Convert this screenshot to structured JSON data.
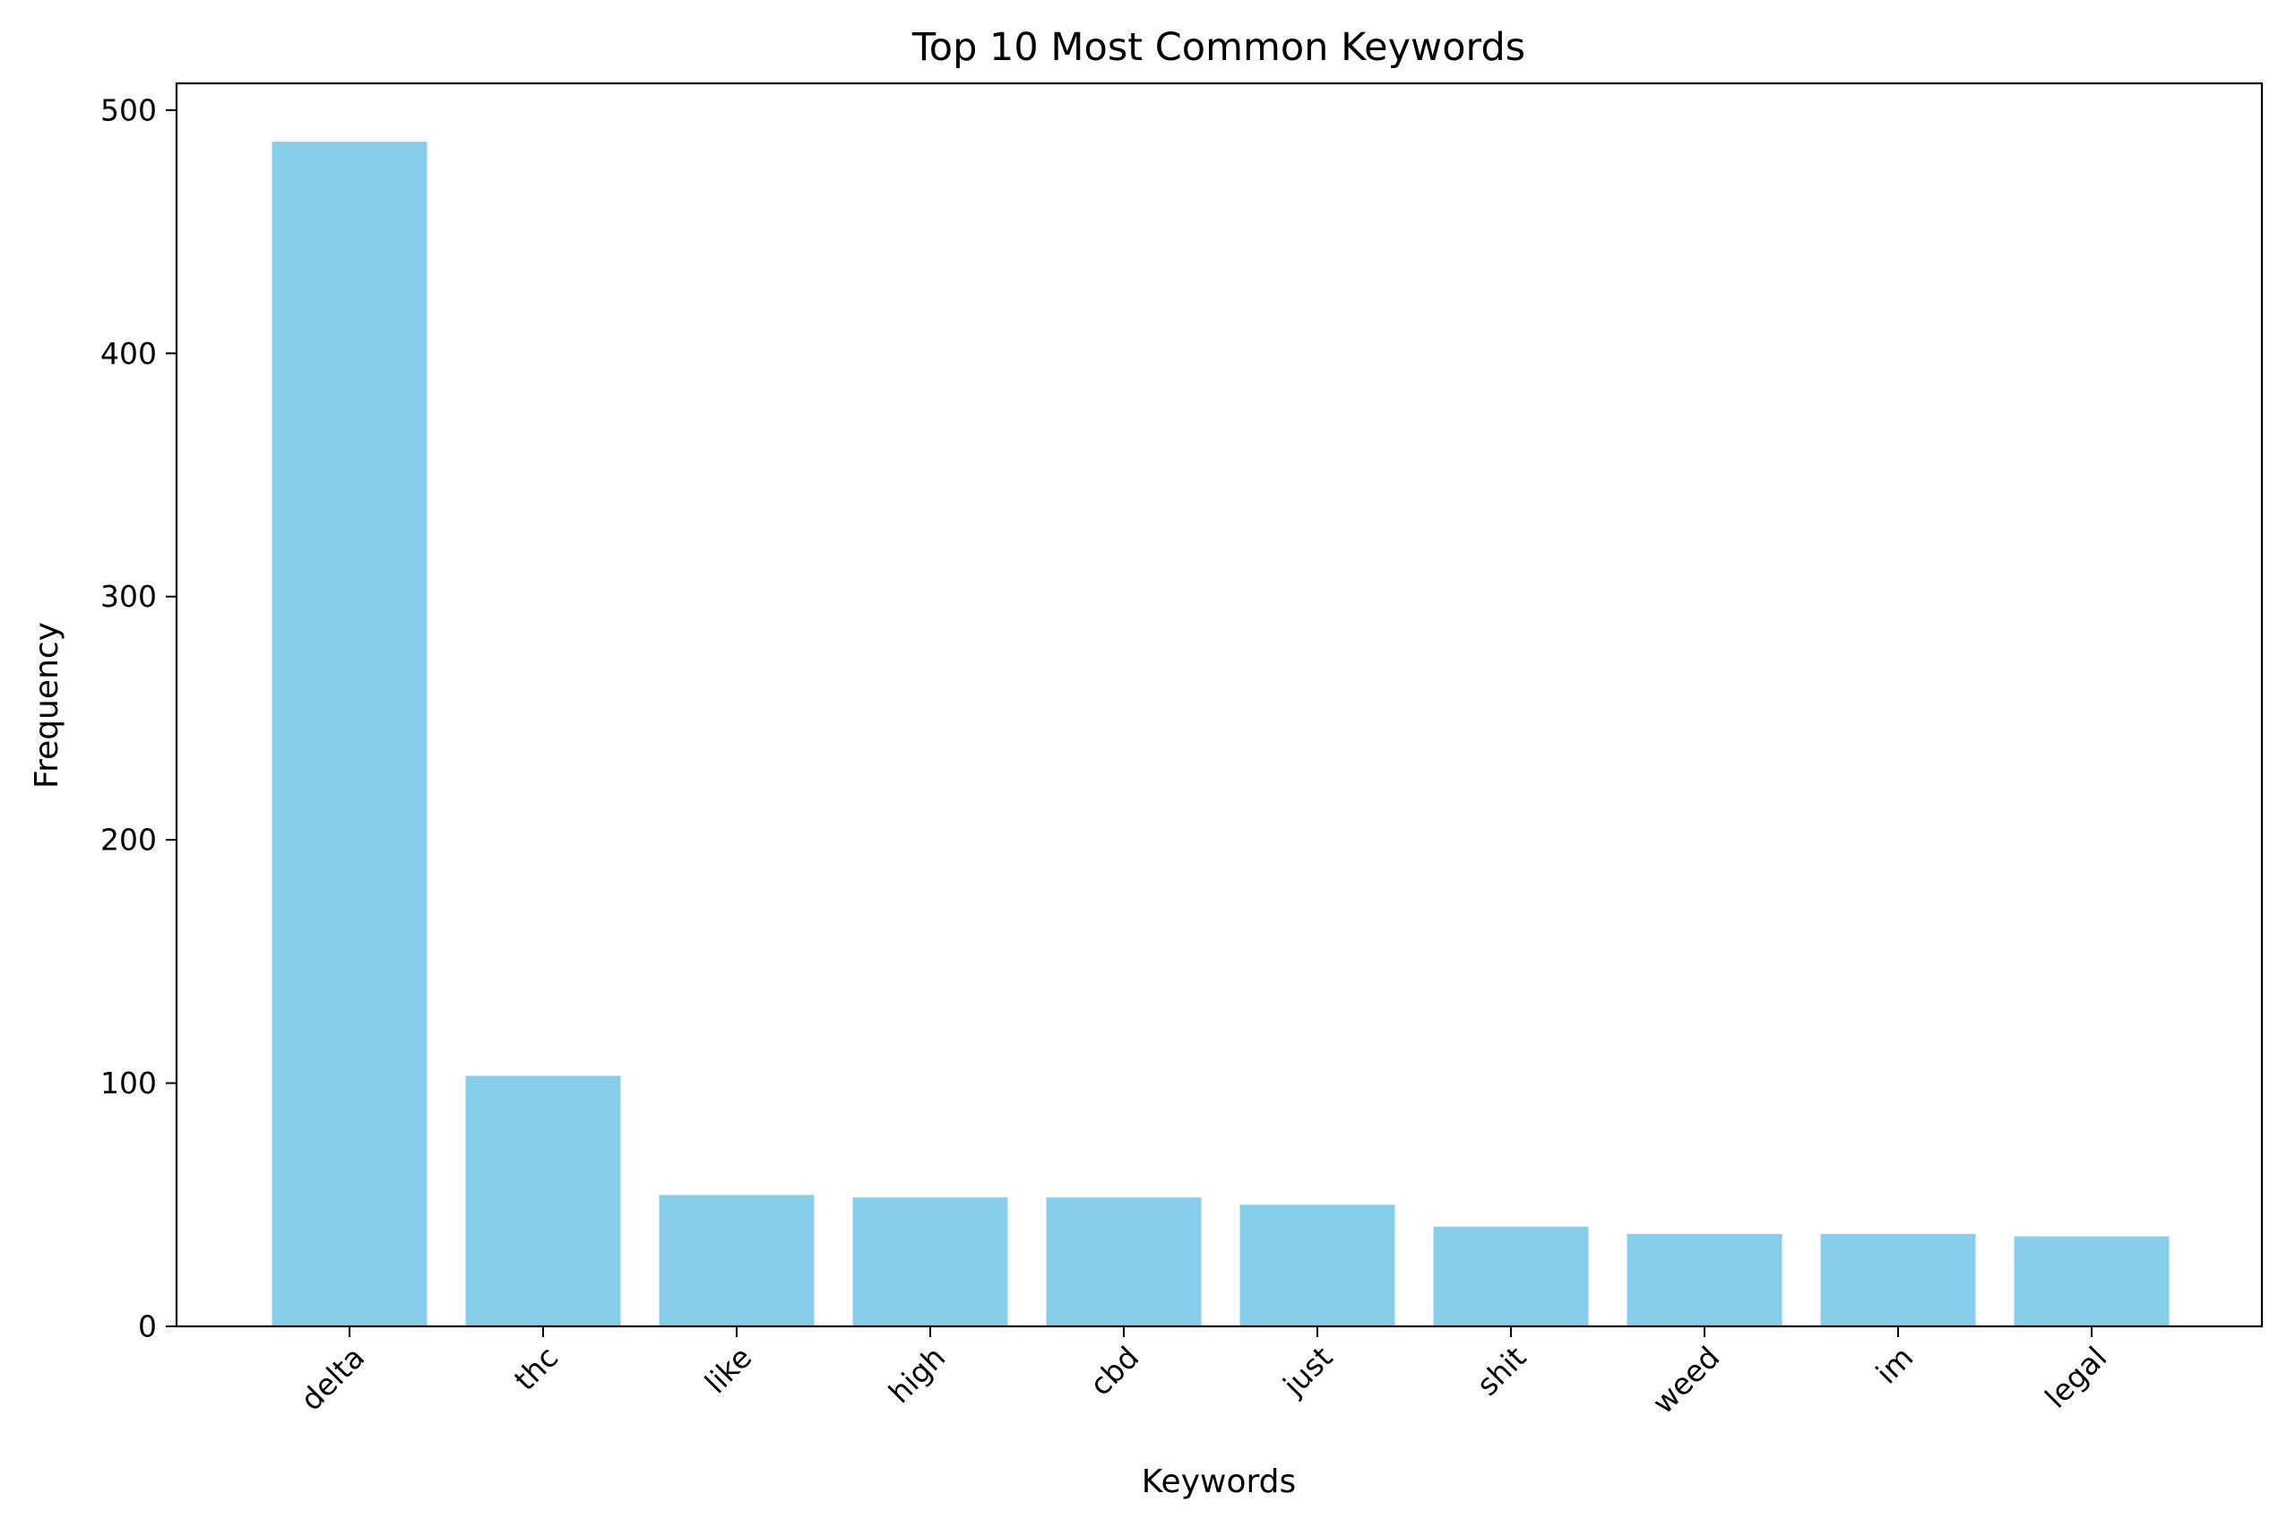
{
  "chart_data": {
    "type": "bar",
    "title": "Top 10 Most Common Keywords",
    "xlabel": "Keywords",
    "ylabel": "Frequency",
    "categories": [
      "delta",
      "thc",
      "like",
      "high",
      "cbd",
      "just",
      "shit",
      "weed",
      "im",
      "legal"
    ],
    "values": [
      487,
      103,
      54,
      53,
      53,
      50,
      41,
      38,
      38,
      37
    ],
    "ylim": [
      0,
      511
    ],
    "yticks": [
      0,
      100,
      200,
      300,
      400,
      500
    ],
    "ytick_labels": [
      "0",
      "100",
      "200",
      "300",
      "400",
      "500"
    ],
    "bar_color": "#87ceeb",
    "grid": false,
    "xtick_rotation_deg": 45
  }
}
